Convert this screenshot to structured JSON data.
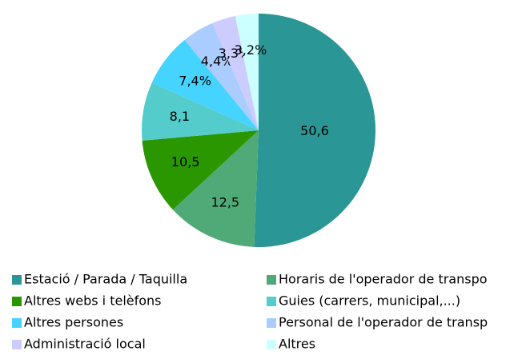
{
  "chart_data": {
    "type": "pie",
    "categories": [
      "Estació / Parada / Taquilla",
      "Horaris de l'operador de transpo",
      "Altres webs i telèfons",
      "Guies (carrers, municipal,...)",
      "Altres persones",
      "Personal de l'operador de transp",
      "Administració local",
      "Altres"
    ],
    "values": [
      50.6,
      12.5,
      10.5,
      8.1,
      7.4,
      4.4,
      3.3,
      3.2
    ],
    "value_labels": [
      "50,6",
      "12,5",
      "10,5",
      "8,1",
      "7,4%",
      "4,4%",
      "3,3%",
      "3,2%"
    ],
    "colors": [
      "#2a9696",
      "#4faa78",
      "#2a9600",
      "#55cccc",
      "#44d4ff",
      "#aaccff",
      "#ccccff",
      "#ccffff"
    ],
    "legend": "bottom"
  }
}
